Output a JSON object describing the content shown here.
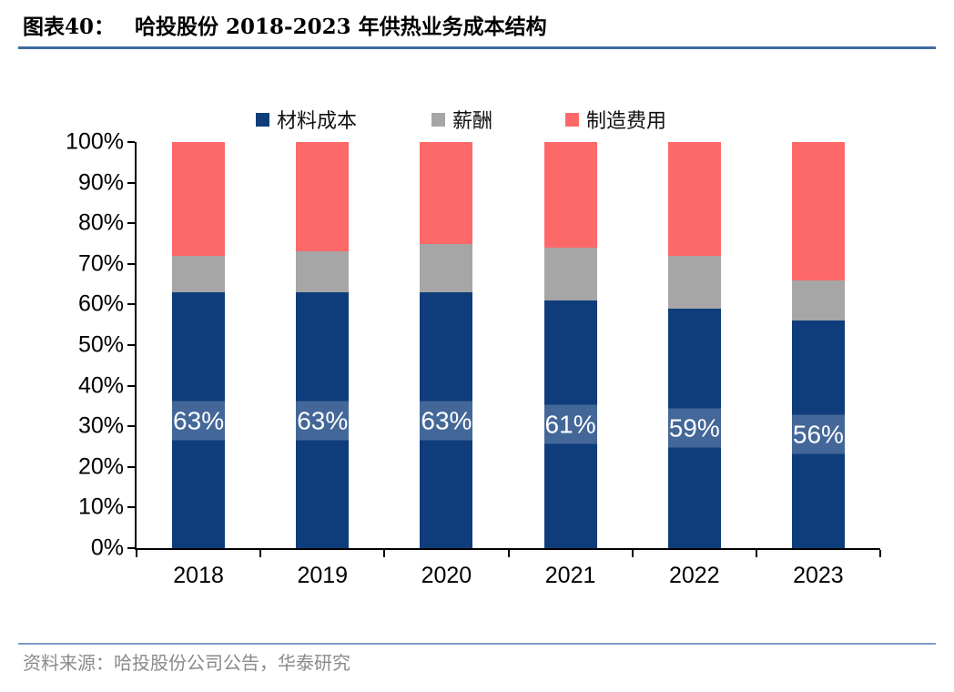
{
  "header": {
    "tag": "图表40：",
    "title": "哈投股份 2018-2023 年供热业务成本结构"
  },
  "source_text": "资料来源：哈投股份公司公告，华泰研究",
  "colors": {
    "material_cost": "#0F3D7C",
    "salary": "#A6A6A6",
    "manufacturing": "#FD6969",
    "title_rule": "#3E6BA3",
    "footer_rule": "#7E9CC6",
    "axis": "#000000",
    "data_label_text": "#FFFFFF"
  },
  "chart_data": {
    "type": "bar",
    "stacked": true,
    "percent_stacked": true,
    "categories": [
      "2018",
      "2019",
      "2020",
      "2021",
      "2022",
      "2023"
    ],
    "series": [
      {
        "name": "材料成本",
        "color": "#0F3D7C",
        "values": [
          63,
          63,
          63,
          61,
          59,
          56
        ],
        "labels": [
          "63%",
          "63%",
          "63%",
          "61%",
          "59%",
          "56%"
        ]
      },
      {
        "name": "薪酬",
        "color": "#A6A6A6",
        "values": [
          9,
          10,
          12,
          13,
          13,
          10
        ],
        "labels": null
      },
      {
        "name": "制造费用",
        "color": "#FD6969",
        "values": [
          28,
          27,
          25,
          26,
          28,
          34
        ],
        "labels": null
      }
    ],
    "y_ticks": [
      "0%",
      "10%",
      "20%",
      "30%",
      "40%",
      "50%",
      "60%",
      "70%",
      "80%",
      "90%",
      "100%"
    ],
    "ylim": [
      0,
      100
    ],
    "xlabel": "",
    "ylabel": "",
    "grid": false,
    "legend_position": "top"
  }
}
